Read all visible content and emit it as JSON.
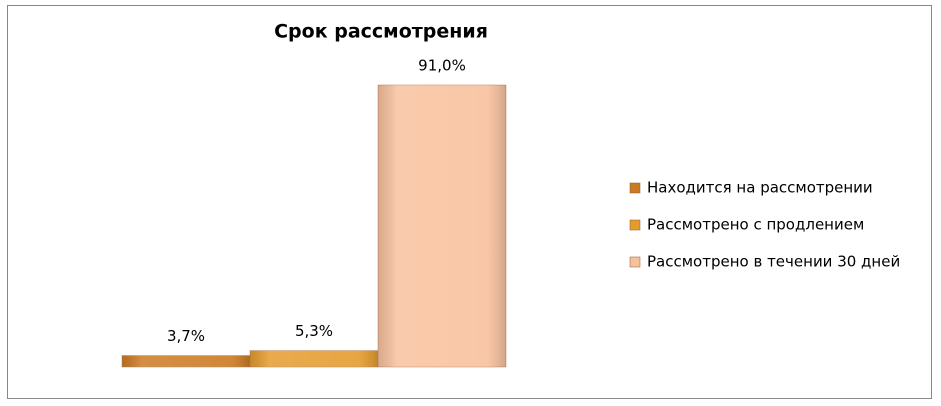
{
  "chart_data": {
    "type": "bar",
    "title": "Срок рассмотрения",
    "series": [
      {
        "name": "Находится на рассмотрении",
        "color": "#cc7a22",
        "values": [
          3.7
        ],
        "value_labels": [
          "3,7%"
        ]
      },
      {
        "name": "Рассмотрено с продлением",
        "color": "#e59c2e",
        "values": [
          5.3
        ],
        "value_labels": [
          "5,3%"
        ]
      },
      {
        "name": "Рассмотрено в течении 30 дней",
        "color": "#f8c19d",
        "values": [
          91.0
        ],
        "value_labels": [
          "91,0%"
        ]
      }
    ],
    "legend": "right"
  }
}
